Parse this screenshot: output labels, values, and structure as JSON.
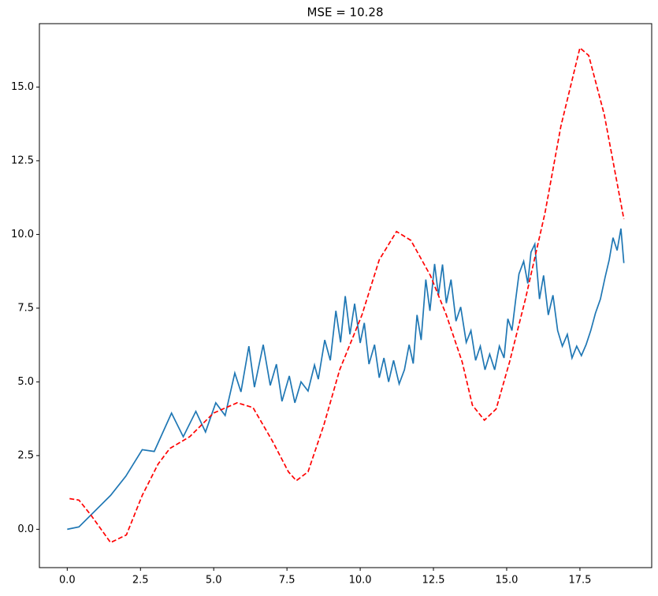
{
  "chart_data": {
    "type": "line",
    "title": "MSE = 10.28",
    "xlim": [
      -0.95,
      19.95
    ],
    "ylim": [
      -1.3,
      17.15
    ],
    "xticks": [
      {
        "value": 0,
        "label": "0.0"
      },
      2.5,
      {
        "value": 5,
        "label": "5.0"
      },
      7.5,
      {
        "value": 10,
        "label": "10.0"
      },
      12.5,
      {
        "value": 15,
        "label": "15.0"
      },
      17.5
    ],
    "yticks": [
      {
        "value": 0,
        "label": "0.0"
      },
      2.5,
      {
        "value": 5,
        "label": "5.0"
      },
      7.5,
      {
        "value": 10,
        "label": "10.0"
      },
      12.5,
      {
        "value": 15,
        "label": "15.0"
      }
    ],
    "series": [
      {
        "color": "#1f77b4",
        "line_style": "solid",
        "x": [
          0,
          0.4,
          1.48,
          2.0,
          2.56,
          2.97,
          3.56,
          3.96,
          4.39,
          4.72,
          5.07,
          5.39,
          5.72,
          5.93,
          6.2,
          6.39,
          6.69,
          6.93,
          7.14,
          7.33,
          7.58,
          7.77,
          7.98,
          8.22,
          8.44,
          8.57,
          8.79,
          8.98,
          9.17,
          9.33,
          9.49,
          9.65,
          9.81,
          10.0,
          10.14,
          10.3,
          10.49,
          10.65,
          10.81,
          10.97,
          11.14,
          11.33,
          11.51,
          11.67,
          11.81,
          11.94,
          12.08,
          12.24,
          12.38,
          12.54,
          12.67,
          12.81,
          12.94,
          13.1,
          13.27,
          13.43,
          13.62,
          13.78,
          13.94,
          14.1,
          14.26,
          14.42,
          14.59,
          14.75,
          14.91,
          15.04,
          15.18,
          15.31,
          15.42,
          15.58,
          15.72,
          15.83,
          15.96,
          16.12,
          16.26,
          16.42,
          16.58,
          16.74,
          16.9,
          17.07,
          17.23,
          17.39,
          17.55,
          17.71,
          17.87,
          18.03,
          18.2,
          18.36,
          18.5,
          18.63,
          18.77,
          18.9,
          19.0
        ],
        "values": [
          0,
          0.08,
          1.15,
          1.8,
          2.7,
          2.64,
          3.94,
          3.14,
          4.0,
          3.3,
          4.29,
          3.86,
          5.3,
          4.66,
          6.21,
          4.82,
          6.26,
          4.88,
          5.6,
          4.34,
          5.2,
          4.29,
          5.0,
          4.69,
          5.57,
          5.09,
          6.42,
          5.73,
          7.41,
          6.34,
          7.91,
          6.61,
          7.65,
          6.32,
          7.0,
          5.6,
          6.26,
          5.14,
          5.81,
          5.0,
          5.73,
          4.93,
          5.41,
          6.26,
          5.62,
          7.27,
          6.42,
          8.47,
          7.41,
          9.0,
          7.94,
          8.98,
          7.67,
          8.47,
          7.06,
          7.54,
          6.34,
          6.74,
          5.73,
          6.21,
          5.41,
          5.94,
          5.41,
          6.21,
          5.81,
          7.14,
          6.74,
          7.81,
          8.66,
          9.09,
          8.34,
          9.4,
          9.67,
          7.81,
          8.61,
          7.27,
          7.94,
          6.74,
          6.21,
          6.61,
          5.81,
          6.21,
          5.89,
          6.26,
          6.74,
          7.33,
          7.81,
          8.55,
          9.14,
          9.89,
          9.46,
          10.2,
          9.03
        ]
      },
      {
        "color": "#ff0000",
        "line_style": "dashed",
        "x": [
          0.08,
          0.4,
          0.81,
          1.48,
          2.02,
          2.56,
          3.1,
          3.5,
          4.18,
          4.99,
          5.8,
          6.34,
          7.0,
          7.55,
          7.82,
          8.22,
          8.76,
          9.3,
          10.06,
          10.65,
          11.24,
          11.73,
          12.4,
          12.94,
          13.48,
          13.83,
          14.24,
          14.64,
          15.1,
          15.64,
          16.31,
          16.85,
          17.5,
          17.8,
          18.33,
          19.0
        ],
        "values": [
          1.04,
          0.99,
          0.48,
          -0.45,
          -0.19,
          1.15,
          2.21,
          2.74,
          3.14,
          3.94,
          4.29,
          4.13,
          3.0,
          1.95,
          1.65,
          1.95,
          3.54,
          5.41,
          7.27,
          9.14,
          10.1,
          9.8,
          8.6,
          7.27,
          5.68,
          4.21,
          3.7,
          4.08,
          5.68,
          7.81,
          10.74,
          13.67,
          16.33,
          16.07,
          14.07,
          10.52
        ]
      }
    ]
  }
}
